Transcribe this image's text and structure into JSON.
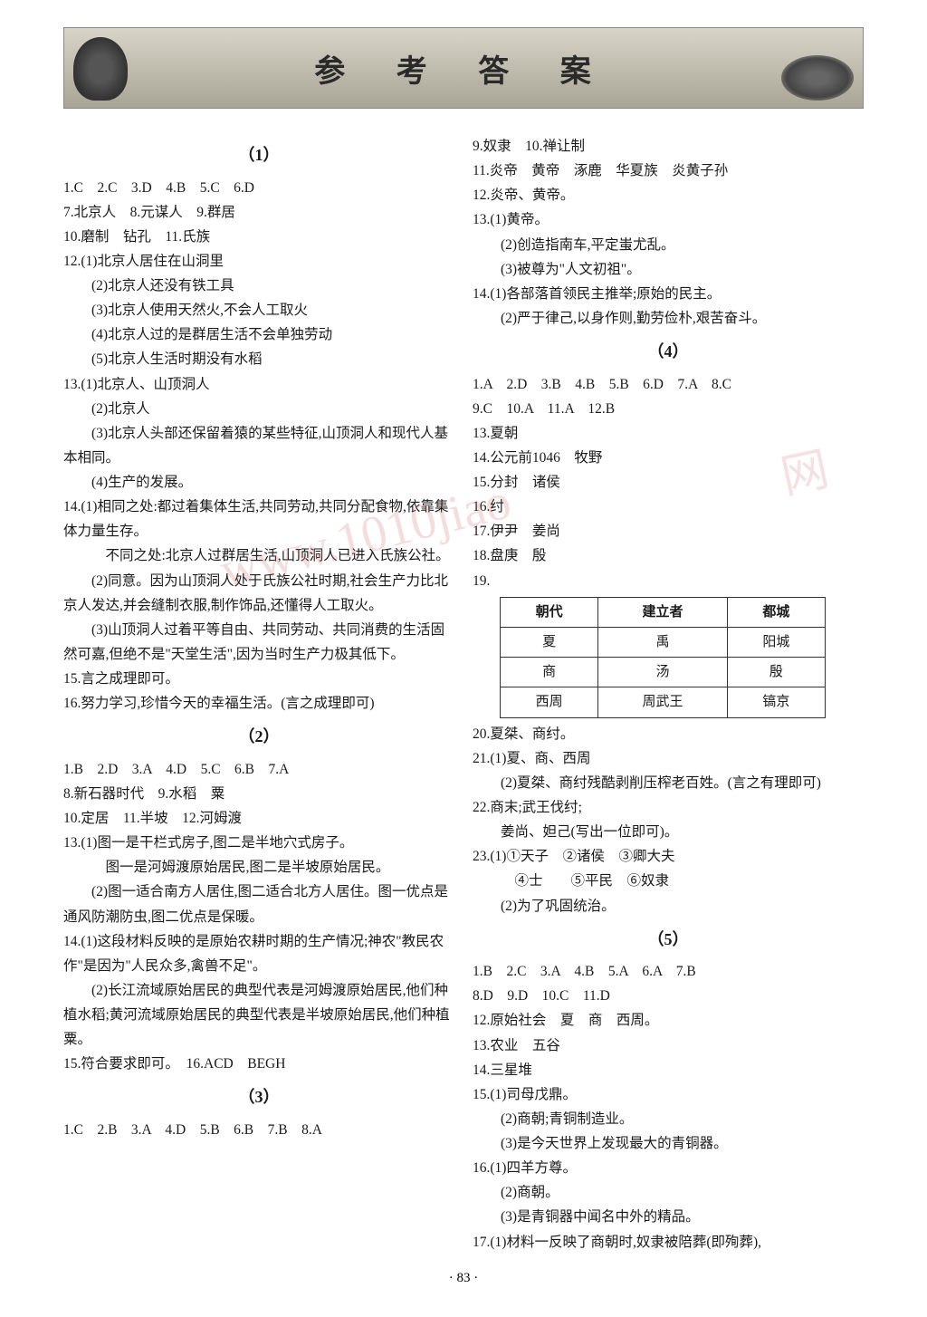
{
  "header": {
    "title": "参 考 答 案"
  },
  "page_number": "· 83 ·",
  "watermark_main": "www.1010jiao",
  "watermark_side": "网",
  "sections": {
    "s1": {
      "num": "（1）",
      "lines": [
        "1.C　2.C　3.D　4.B　5.C　6.D",
        "7.北京人　8.元谋人　9.群居",
        "10.磨制　钻孔　11.氏族",
        "12.(1)北京人居住在山洞里",
        "　　(2)北京人还没有铁工具",
        "　　(3)北京人使用天然火,不会人工取火",
        "　　(4)北京人过的是群居生活不会单独劳动",
        "　　(5)北京人生活时期没有水稻",
        "13.(1)北京人、山顶洞人",
        "　　(2)北京人",
        "　　(3)北京人头部还保留着猿的某些特征,山顶洞人和现代人基本相同。",
        "　　(4)生产的发展。",
        "14.(1)相同之处:都过着集体生活,共同劳动,共同分配食物,依靠集体力量生存。",
        "　　　不同之处:北京人过群居生活,山顶洞人已进入氏族公社。",
        "　　(2)同意。因为山顶洞人处于氏族公社时期,社会生产力比北京人发达,并会缝制衣服,制作饰品,还懂得人工取火。",
        "　　(3)山顶洞人过着平等自由、共同劳动、共同消费的生活固然可嘉,但绝不是\"天堂生活\",因为当时生产力极其低下。",
        "15.言之成理即可。",
        "16.努力学习,珍惜今天的幸福生活。(言之成理即可)"
      ]
    },
    "s2": {
      "num": "（2）",
      "lines": [
        "1.B　2.D　3.A　4.D　5.C　6.B　7.A",
        "8.新石器时代　9.水稻　粟",
        "10.定居　11.半坡　12.河姆渡",
        "13.(1)图一是干栏式房子,图二是半地穴式房子。",
        "　　　图一是河姆渡原始居民,图二是半坡原始居民。",
        "　　(2)图一适合南方人居住,图二适合北方人居住。图一优点是通风防潮防虫,图二优点是保暖。",
        "14.(1)这段材料反映的是原始农耕时期的生产情况;神农\"教民农作\"是因为\"人民众多,禽兽不足\"。",
        "　　(2)长江流域原始居民的典型代表是河姆渡原始居民,他们种植水稻;黄河流域原始居民的典型代表是半坡原始居民,他们种植粟。",
        "15.符合要求即可。　16.ACD　BEGH"
      ]
    },
    "s3": {
      "num": "（3）",
      "lines": [
        "1.C　2.B　3.A　4.D　5.B　6.B　7.B　8.A"
      ]
    },
    "s3b": {
      "lines": [
        "9.奴隶　10.禅让制",
        "11.炎帝　黄帝　涿鹿　华夏族　炎黄子孙",
        "12.炎帝、黄帝。",
        "13.(1)黄帝。",
        "　　(2)创造指南车,平定蚩尤乱。",
        "　　(3)被尊为\"人文初祖\"。",
        "14.(1)各部落首领民主推举;原始的民主。",
        "　　(2)严于律己,以身作则,勤劳俭朴,艰苦奋斗。"
      ]
    },
    "s4": {
      "num": "（4）",
      "lines_a": [
        "1.A　2.D　3.B　4.B　5.B　6.D　7.A　8.C",
        "9.C　10.A　11.A　12.B",
        "13.夏朝",
        "14.公元前1046　牧野",
        "15.分封　诸侯",
        "16.纣",
        "17.伊尹　姜尚",
        "18.盘庚　殷",
        "19."
      ],
      "table": {
        "headers": [
          "朝代",
          "建立者",
          "都城"
        ],
        "rows": [
          [
            "夏",
            "禹",
            "阳城"
          ],
          [
            "商",
            "汤",
            "殷"
          ],
          [
            "西周",
            "周武王",
            "镐京"
          ]
        ]
      },
      "lines_b": [
        "20.夏桀、商纣。",
        "21.(1)夏、商、西周",
        "　　(2)夏桀、商纣残酷剥削压榨老百姓。(言之有理即可)",
        "22.商末;武王伐纣;",
        "　　姜尚、妲己(写出一位即可)。",
        "23.(1)①天子　②诸侯　③卿大夫",
        "　　　④士　　⑤平民　⑥奴隶",
        "　　(2)为了巩固统治。"
      ]
    },
    "s5": {
      "num": "（5）",
      "lines": [
        "1.B　2.C　3.A　4.B　5.A　6.A　7.B",
        "8.D　9.D　10.C　11.D",
        "12.原始社会　夏　商　西周。",
        "13.农业　五谷",
        "14.三星堆",
        "15.(1)司母戊鼎。",
        "　　(2)商朝;青铜制造业。",
        "　　(3)是今天世界上发现最大的青铜器。",
        "16.(1)四羊方尊。",
        "　　(2)商朝。",
        "　　(3)是青铜器中闻名中外的精品。",
        "17.(1)材料一反映了商朝时,奴隶被陪葬(即殉葬),"
      ]
    }
  }
}
